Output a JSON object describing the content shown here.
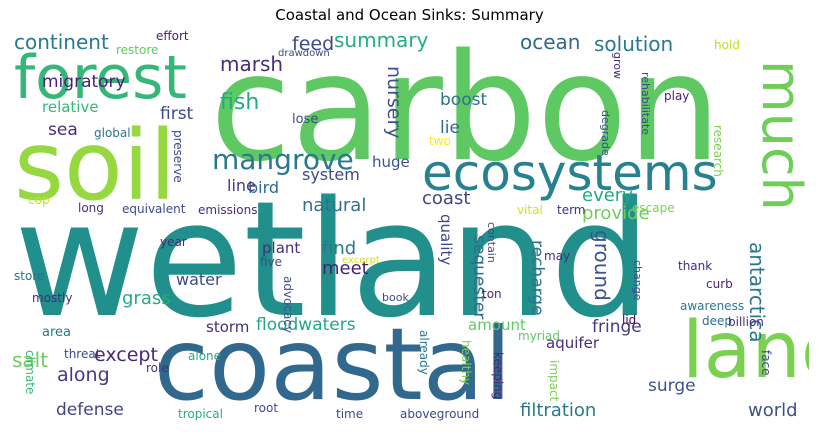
{
  "title": "Coastal and Ocean Sinks: Summary",
  "words": [
    {
      "t": "wetland",
      "c": "#21908c"
    },
    {
      "t": "carbon",
      "c": "#5ec962"
    },
    {
      "t": "coastal",
      "c": "#31688e"
    },
    {
      "t": "soil",
      "c": "#95d840"
    },
    {
      "t": "forest",
      "c": "#35b779"
    },
    {
      "t": "land",
      "c": "#7ad151"
    },
    {
      "t": "ecosystems",
      "c": "#26828e"
    },
    {
      "t": "much",
      "c": "#6ece58"
    },
    {
      "t": "mangrove",
      "c": "#2a788e"
    },
    {
      "t": "antarctica",
      "c": "#2a788e"
    },
    {
      "t": "ground",
      "c": "#3b528b"
    },
    {
      "t": "continent",
      "c": "#2a788e"
    },
    {
      "t": "marsh",
      "c": "#472d7b"
    },
    {
      "t": "ocean",
      "c": "#31688e"
    },
    {
      "t": "solution",
      "c": "#2a788e"
    },
    {
      "t": "summary",
      "c": "#25ac82"
    },
    {
      "t": "feed",
      "c": "#3e4989"
    },
    {
      "t": "migratory",
      "c": "#482173"
    },
    {
      "t": "nursery",
      "c": "#3b528b"
    },
    {
      "t": "fish",
      "c": "#22a884"
    },
    {
      "t": "boost",
      "c": "#2c728e"
    },
    {
      "t": "lie",
      "c": "#31688e"
    },
    {
      "t": "first",
      "c": "#3e4989"
    },
    {
      "t": "sea",
      "c": "#472d7b"
    },
    {
      "t": "relative",
      "c": "#35b779"
    },
    {
      "t": "system",
      "c": "#3e4989"
    },
    {
      "t": "bird",
      "c": "#31688e"
    },
    {
      "t": "line",
      "c": "#443983"
    },
    {
      "t": "huge",
      "c": "#3b528b"
    },
    {
      "t": "coast",
      "c": "#414487"
    },
    {
      "t": "every",
      "c": "#22a884"
    },
    {
      "t": "provide",
      "c": "#6ece58"
    },
    {
      "t": "natural",
      "c": "#2c728e"
    },
    {
      "t": "plant",
      "c": "#472d7b"
    },
    {
      "t": "find",
      "c": "#2a788e"
    },
    {
      "t": "meet",
      "c": "#481f70"
    },
    {
      "t": "water",
      "c": "#3e4989"
    },
    {
      "t": "grass",
      "c": "#25ac82"
    },
    {
      "t": "storm",
      "c": "#472d7b"
    },
    {
      "t": "floodwaters",
      "c": "#22a884"
    },
    {
      "t": "fringe",
      "c": "#443983"
    },
    {
      "t": "recharge",
      "c": "#2c728e"
    },
    {
      "t": "sequester",
      "c": "#31688e"
    },
    {
      "t": "quality",
      "c": "#3e4989"
    },
    {
      "t": "salt",
      "c": "#6ece58"
    },
    {
      "t": "except",
      "c": "#482878"
    },
    {
      "t": "along",
      "c": "#443983"
    },
    {
      "t": "amount",
      "c": "#5ec962"
    },
    {
      "t": "aquifer",
      "c": "#472d7b"
    },
    {
      "t": "defense",
      "c": "#414487"
    },
    {
      "t": "filtration",
      "c": "#2a788e"
    },
    {
      "t": "surge",
      "c": "#3b528b"
    },
    {
      "t": "world",
      "c": "#3b528b"
    },
    {
      "t": "effort",
      "c": "#481f70"
    },
    {
      "t": "restore",
      "c": "#5ec962"
    },
    {
      "t": "drawdown",
      "c": "#3e4989"
    },
    {
      "t": "grow",
      "c": "#472d7b"
    },
    {
      "t": "degrade",
      "c": "#3b528b"
    },
    {
      "t": "rehabilitate",
      "c": "#3e4989"
    },
    {
      "t": "research",
      "c": "#7ad151"
    },
    {
      "t": "hold",
      "c": "#bddf26"
    },
    {
      "t": "play",
      "c": "#482173"
    },
    {
      "t": "lose",
      "c": "#3e4989"
    },
    {
      "t": "global",
      "c": "#2a788e"
    },
    {
      "t": "preserve",
      "c": "#3e4989"
    },
    {
      "t": "two",
      "c": "#fde725"
    },
    {
      "t": "cop",
      "c": "#c2df23"
    },
    {
      "t": "long",
      "c": "#472d7b"
    },
    {
      "t": "equivalent",
      "c": "#3e4989"
    },
    {
      "t": "emissions",
      "c": "#472d7b"
    },
    {
      "t": "vital",
      "c": "#d2e21b"
    },
    {
      "t": "term",
      "c": "#472d7b"
    },
    {
      "t": "escape",
      "c": "#7ad151"
    },
    {
      "t": "contain",
      "c": "#3e4989"
    },
    {
      "t": "year",
      "c": "#482878"
    },
    {
      "t": "five",
      "c": "#3e4989"
    },
    {
      "t": "excerpt",
      "c": "#d2e21b"
    },
    {
      "t": "advocacy",
      "c": "#3b528b"
    },
    {
      "t": "may",
      "c": "#472d7b"
    },
    {
      "t": "thank",
      "c": "#472d7b"
    },
    {
      "t": "change",
      "c": "#3e4989"
    },
    {
      "t": "curb",
      "c": "#481f70"
    },
    {
      "t": "awareness",
      "c": "#2a788e"
    },
    {
      "t": "deep",
      "c": "#2c728e"
    },
    {
      "t": "store",
      "c": "#2c728e"
    },
    {
      "t": "mostly",
      "c": "#482878"
    },
    {
      "t": "book",
      "c": "#3e4989"
    },
    {
      "t": "ton",
      "c": "#482878"
    },
    {
      "t": "myriad",
      "c": "#5ec962"
    },
    {
      "t": "lid",
      "c": "#440154"
    },
    {
      "t": "billion",
      "c": "#472d7b"
    },
    {
      "t": "area",
      "c": "#2a788e"
    },
    {
      "t": "threat",
      "c": "#3e4989"
    },
    {
      "t": "already",
      "c": "#2a788e"
    },
    {
      "t": "healthy",
      "c": "#7ad151"
    },
    {
      "t": "keeping",
      "c": "#482878"
    },
    {
      "t": "impact",
      "c": "#7ad151"
    },
    {
      "t": "face",
      "c": "#3e4989"
    },
    {
      "t": "climate",
      "c": "#35b779"
    },
    {
      "t": "role",
      "c": "#472d7b"
    },
    {
      "t": "alone",
      "c": "#22a884"
    },
    {
      "t": "tropical",
      "c": "#25ac82"
    },
    {
      "t": "root",
      "c": "#3e4989"
    },
    {
      "t": "time",
      "c": "#3e4989"
    },
    {
      "t": "aboveground",
      "c": "#3e4989"
    }
  ]
}
